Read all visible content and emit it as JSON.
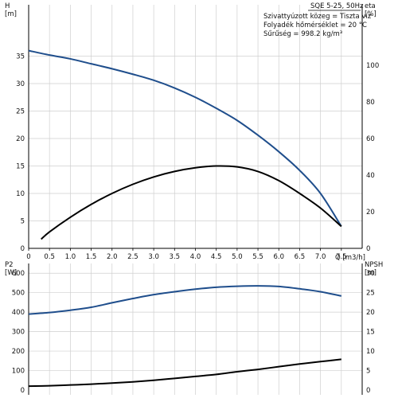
{
  "chart_data": [
    {
      "type": "line",
      "title": "SQE 5-25, 50Hz",
      "info_lines": [
        "Szivattyúzott közeg = Tiszta víz",
        "Folyadék hőmérséklet = 20 °C",
        "Sűrűség = 998.2 kg/m³"
      ],
      "xlabel": "Q [m3/h]",
      "xlim": [
        0,
        8
      ],
      "xticks": [
        "0",
        "0.5",
        "1.0",
        "1.5",
        "2.0",
        "2.5",
        "3.0",
        "3.5",
        "4.0",
        "4.5",
        "5.0",
        "5.5",
        "6.0",
        "6.5",
        "7.0",
        "7.5"
      ],
      "y_left": {
        "label": "H",
        "unit": "[m]",
        "ylim": [
          0,
          40
        ],
        "ticks": [
          "0",
          "5",
          "10",
          "15",
          "20",
          "25",
          "30",
          "35"
        ]
      },
      "y_right": {
        "label": "eta",
        "unit": "[%]",
        "ylim": [
          0,
          120
        ],
        "ticks": [
          "0",
          "20",
          "40",
          "60",
          "80",
          "100"
        ]
      },
      "grid": true,
      "series": [
        {
          "axis": "left",
          "color": "#1f4e8c",
          "x": [
            0,
            0.5,
            1.0,
            1.5,
            2.0,
            2.5,
            3.0,
            3.5,
            4.0,
            4.5,
            5.0,
            5.5,
            6.0,
            6.5,
            7.0,
            7.5
          ],
          "y": [
            36.0,
            35.2,
            34.5,
            33.6,
            32.7,
            31.7,
            30.6,
            29.2,
            27.5,
            25.5,
            23.3,
            20.6,
            17.6,
            14.2,
            10.0,
            4.0
          ]
        },
        {
          "axis": "right",
          "color": "#000000",
          "x": [
            0.3,
            0.5,
            1.0,
            1.5,
            2.0,
            2.5,
            3.0,
            3.5,
            4.0,
            4.5,
            5.0,
            5.5,
            6.0,
            6.5,
            7.0,
            7.5
          ],
          "y": [
            5,
            9,
            17,
            24,
            30,
            35,
            39,
            42,
            44,
            45,
            44.5,
            42,
            37,
            30,
            22,
            12
          ]
        }
      ]
    },
    {
      "type": "line",
      "xlim": [
        0,
        8
      ],
      "y_left": {
        "label": "P2",
        "unit": "[W]",
        "ylim": [
          0,
          650
        ],
        "ticks": [
          "0",
          "100",
          "200",
          "300",
          "400",
          "500",
          "600"
        ]
      },
      "y_right": {
        "label": "NPSH",
        "unit": "[m]",
        "ylim": [
          0,
          32.5
        ],
        "ticks": [
          "0",
          "5",
          "10",
          "15",
          "20",
          "25",
          "30"
        ]
      },
      "grid": true,
      "series": [
        {
          "axis": "left",
          "color": "#1f4e8c",
          "x": [
            0,
            0.5,
            1.0,
            1.5,
            2.0,
            2.5,
            3.0,
            3.5,
            4.0,
            4.5,
            5.0,
            5.5,
            6.0,
            6.5,
            7.0,
            7.5
          ],
          "y": [
            390,
            398,
            410,
            425,
            448,
            470,
            490,
            505,
            518,
            528,
            533,
            535,
            532,
            520,
            505,
            483
          ]
        },
        {
          "axis": "right",
          "color": "#000000",
          "x": [
            0,
            0.5,
            1.0,
            1.5,
            2.0,
            2.5,
            3.0,
            3.5,
            4.0,
            4.5,
            5.0,
            5.5,
            6.0,
            6.5,
            7.0,
            7.5
          ],
          "y": [
            1.0,
            1.1,
            1.3,
            1.5,
            1.8,
            2.1,
            2.5,
            3.0,
            3.5,
            4.0,
            4.7,
            5.3,
            6.0,
            6.7,
            7.3,
            7.9
          ]
        }
      ]
    }
  ]
}
